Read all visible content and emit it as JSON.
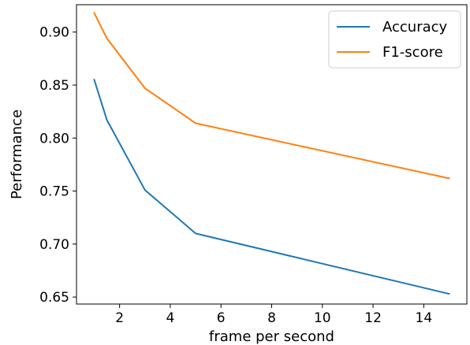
{
  "chart_data": {
    "type": "line",
    "title": "",
    "xlabel": "frame per second",
    "ylabel": "Performance",
    "xlim": [
      0.3,
      15.7
    ],
    "ylim": [
      0.6434,
      0.9258
    ],
    "xticks": [
      2,
      4,
      6,
      8,
      10,
      12,
      14
    ],
    "yticks": [
      0.65,
      0.7,
      0.75,
      0.8,
      0.85,
      0.9
    ],
    "xtick_labels": [
      "2",
      "4",
      "6",
      "8",
      "10",
      "12",
      "14"
    ],
    "ytick_labels": [
      "0.65",
      "0.70",
      "0.75",
      "0.80",
      "0.85",
      "0.90"
    ],
    "grid": false,
    "legend_position": "top-right",
    "series": [
      {
        "name": "Accuracy",
        "color": "#1f77b4",
        "x": [
          1,
          1.5,
          3,
          5,
          15
        ],
        "y": [
          0.855,
          0.817,
          0.751,
          0.71,
          0.653
        ]
      },
      {
        "name": "F1-score",
        "color": "#ff7f0e",
        "x": [
          1,
          1.5,
          3,
          5,
          15
        ],
        "y": [
          0.918,
          0.894,
          0.847,
          0.814,
          0.762
        ]
      }
    ]
  }
}
